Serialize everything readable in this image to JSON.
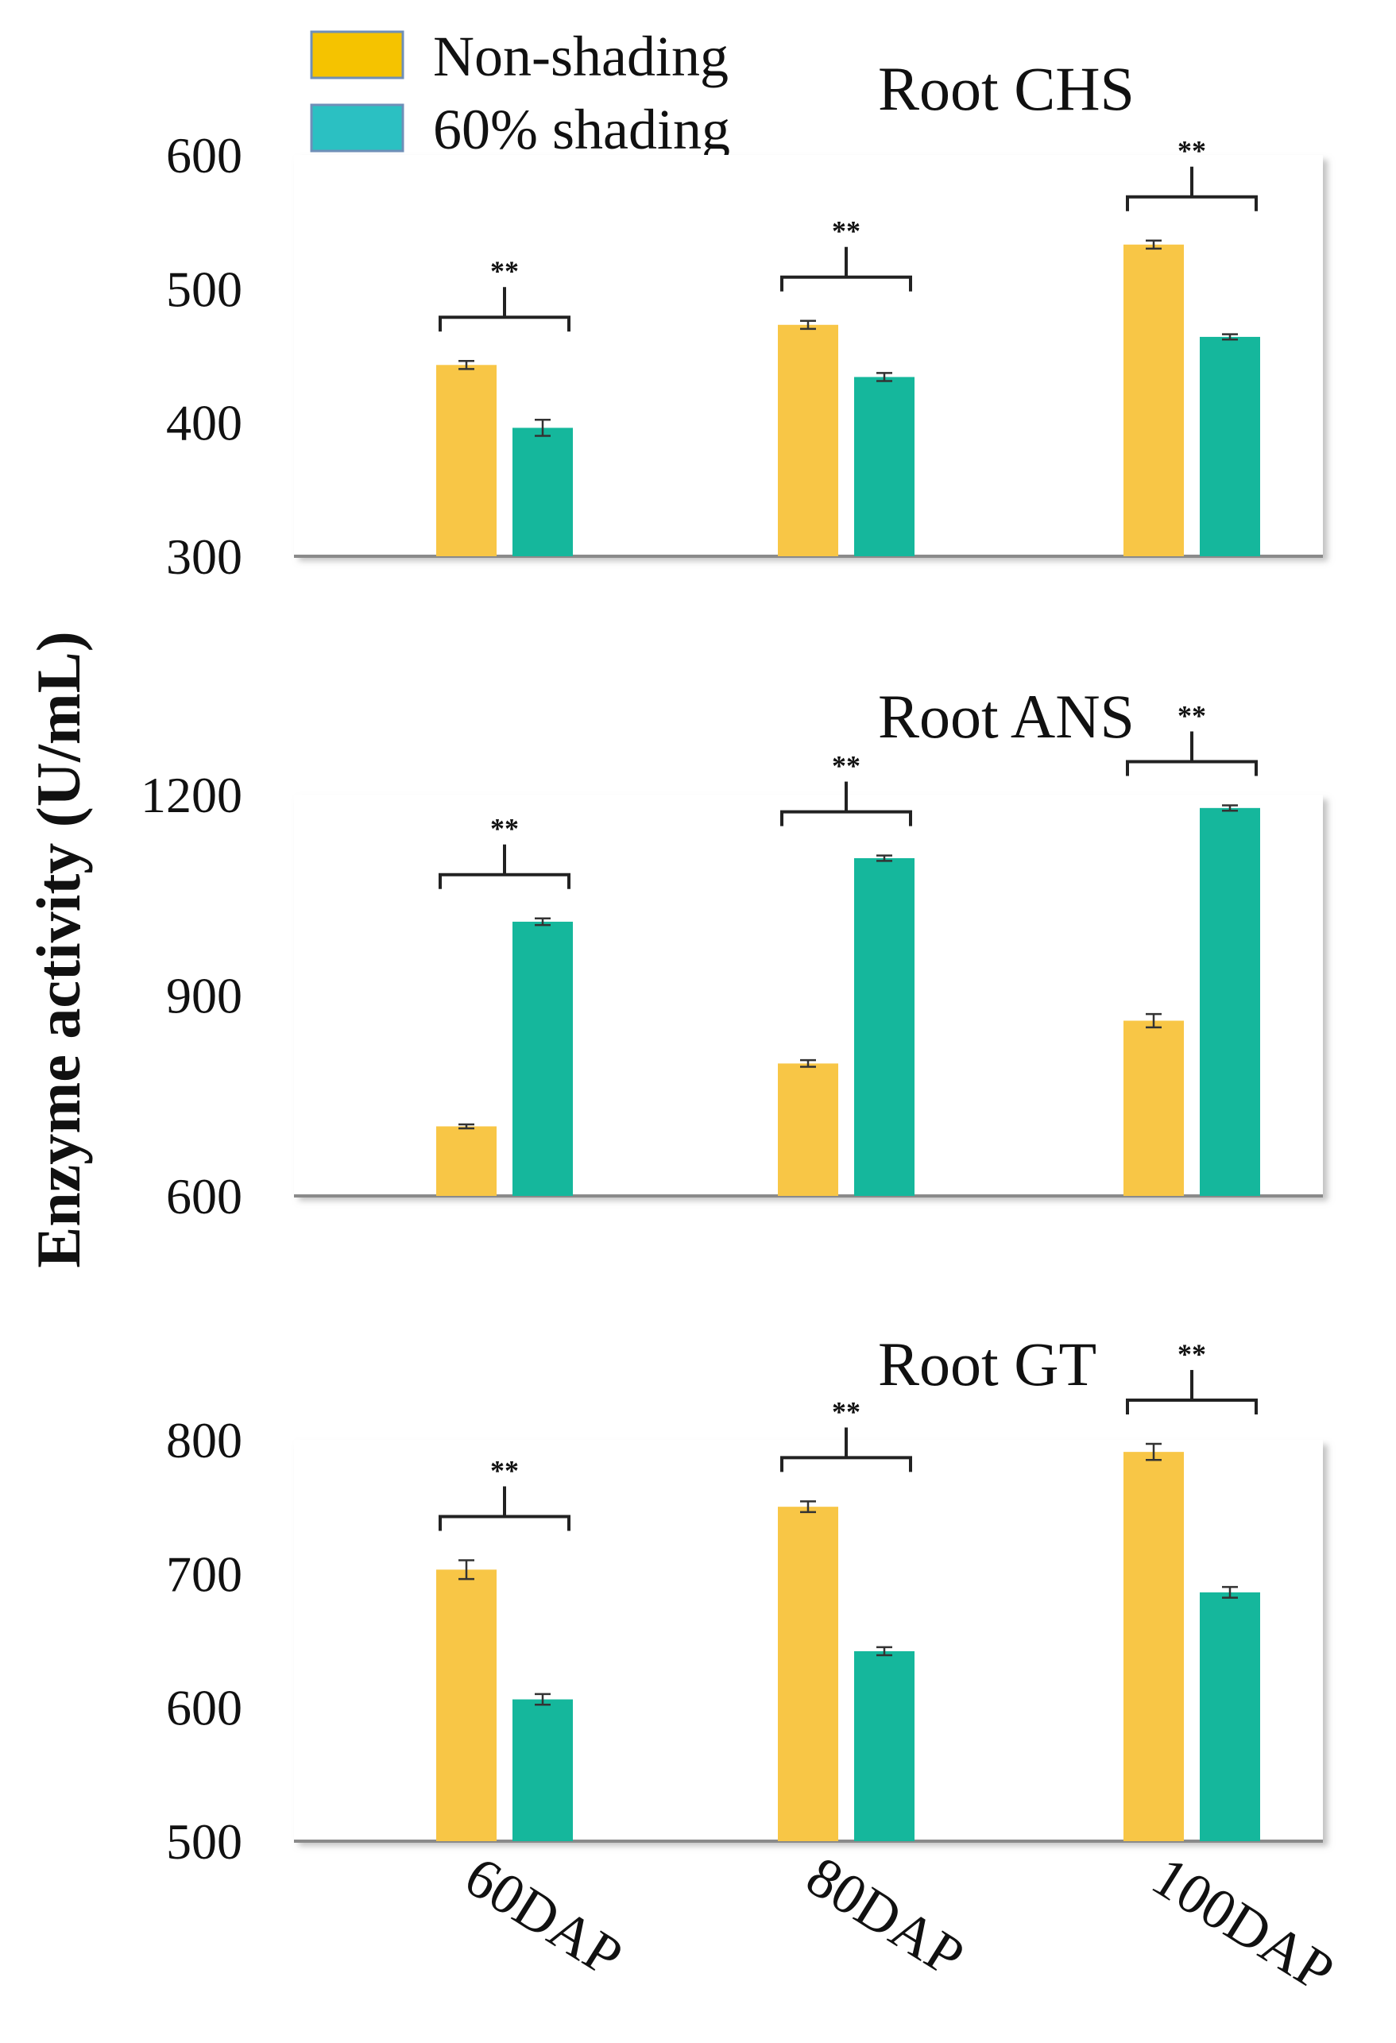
{
  "chart_data": {
    "type": "bar",
    "ylabel": "Enzyme   activity   (U/mL)",
    "categories": [
      "60DAP",
      "80DAP",
      "100DAP"
    ],
    "legend": {
      "placement": "top-left",
      "entries": [
        {
          "name": "Non-shading",
          "color": "#F8C646"
        },
        {
          "name": "60% shading",
          "color": "#15B79C"
        }
      ]
    },
    "legend_swatch_colors": [
      "#F5C300",
      "#2BC0C2"
    ],
    "panels": [
      {
        "title": "Root  CHS",
        "ylim": [
          300,
          600
        ],
        "yticks": [
          300,
          400,
          500,
          600
        ],
        "series": [
          {
            "name": "Non-shading",
            "values": [
              443,
              473,
              533
            ],
            "errors": [
              3,
              3,
              3
            ]
          },
          {
            "name": "60% shading",
            "values": [
              396,
              434,
              464
            ],
            "errors": [
              6,
              3,
              2
            ]
          }
        ],
        "significance": [
          "**",
          "**",
          "**"
        ]
      },
      {
        "title": "Root  ANS",
        "ylim": [
          600,
          1200
        ],
        "yticks": [
          600,
          900,
          1200
        ],
        "series": [
          {
            "name": "Non-shading",
            "values": [
              704,
              798,
              862
            ],
            "errors": [
              3,
              5,
              10
            ]
          },
          {
            "name": "60% shading",
            "values": [
              1010,
              1105,
              1180
            ],
            "errors": [
              5,
              4,
              4
            ]
          }
        ],
        "significance": [
          "**",
          "**",
          "**"
        ]
      },
      {
        "title": "Root  GT",
        "ylim": [
          500,
          800
        ],
        "yticks": [
          500,
          600,
          700,
          800
        ],
        "series": [
          {
            "name": "Non-shading",
            "values": [
              703,
              750,
              791
            ],
            "errors": [
              7,
              4,
              6
            ]
          },
          {
            "name": "60% shading",
            "values": [
              606,
              642,
              686
            ],
            "errors": [
              4,
              3,
              4
            ]
          }
        ],
        "significance": [
          "**",
          "**",
          "**"
        ]
      }
    ]
  }
}
